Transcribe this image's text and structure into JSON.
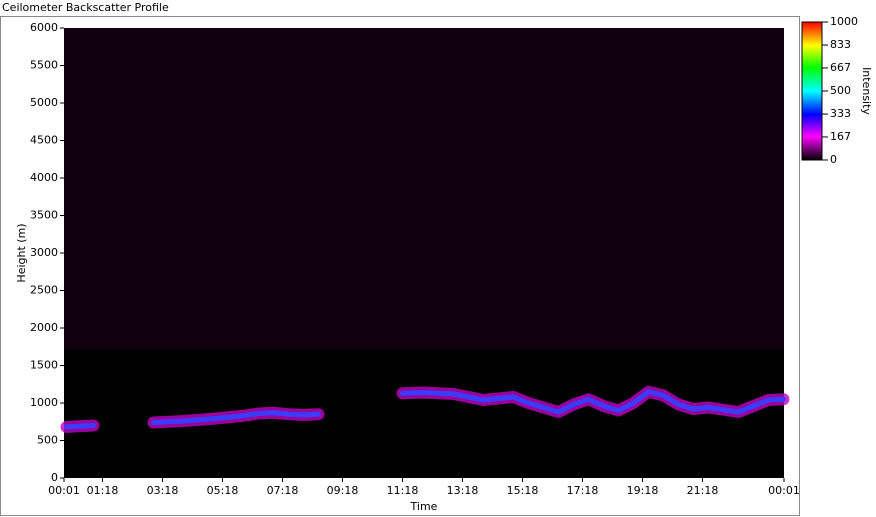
{
  "chart_data": {
    "type": "line",
    "title": "Ceilometer Backscatter Profile",
    "xlabel": "Time",
    "ylabel": "Height (m)",
    "x": [
      0.1,
      0.5,
      1.0,
      1.3,
      3.0,
      3.5,
      4.0,
      4.5,
      5.0,
      5.5,
      6.0,
      6.5,
      7.0,
      7.5,
      8.0,
      8.5,
      9.0,
      11.3,
      12.0,
      12.5,
      13.0,
      13.5,
      14.0,
      14.5,
      15.0,
      15.5,
      16.0,
      16.5,
      17.0,
      17.5,
      18.0,
      18.5,
      19.0,
      19.5,
      20.0,
      20.5,
      21.0,
      21.5,
      22.0,
      22.5,
      23.0,
      23.5,
      24.0
    ],
    "series": [
      {
        "color": "#3c3cff",
        "values": [
          680,
          690,
          700,
          null,
          740,
          750,
          760,
          775,
          790,
          810,
          830,
          860,
          870,
          850,
          840,
          850,
          null,
          1130,
          1140,
          1130,
          1120,
          1080,
          1040,
          1060,
          1080,
          1000,
          940,
          880,
          980,
          1050,
          960,
          900,
          1000,
          1150,
          1100,
          980,
          920,
          940,
          910,
          880,
          960,
          1040,
          1050
        ]
      }
    ],
    "xlim": [
      0.0167,
      24.0167
    ],
    "xticks": [
      {
        "value": 0.0167,
        "label": "00:01"
      },
      {
        "value": 1.3,
        "label": "01:18"
      },
      {
        "value": 3.3,
        "label": "03:18"
      },
      {
        "value": 5.3,
        "label": "05:18"
      },
      {
        "value": 7.3,
        "label": "07:18"
      },
      {
        "value": 9.3,
        "label": "09:18"
      },
      {
        "value": 11.3,
        "label": "11:18"
      },
      {
        "value": 13.3,
        "label": "13:18"
      },
      {
        "value": 15.3,
        "label": "15:18"
      },
      {
        "value": 17.3,
        "label": "17:18"
      },
      {
        "value": 19.3,
        "label": "19:18"
      },
      {
        "value": 21.3,
        "label": "21:18"
      },
      {
        "value": 24.0167,
        "label": "00:01"
      }
    ],
    "ylim": [
      0,
      6000
    ],
    "yticks": [
      0,
      500,
      1000,
      1500,
      2000,
      2500,
      3000,
      3500,
      4000,
      4500,
      5000,
      5500,
      6000
    ],
    "colorbar": {
      "label": "Intensity",
      "lim": [
        0,
        1000
      ],
      "ticks": [
        0,
        167,
        333,
        500,
        667,
        833,
        1000
      ]
    }
  }
}
